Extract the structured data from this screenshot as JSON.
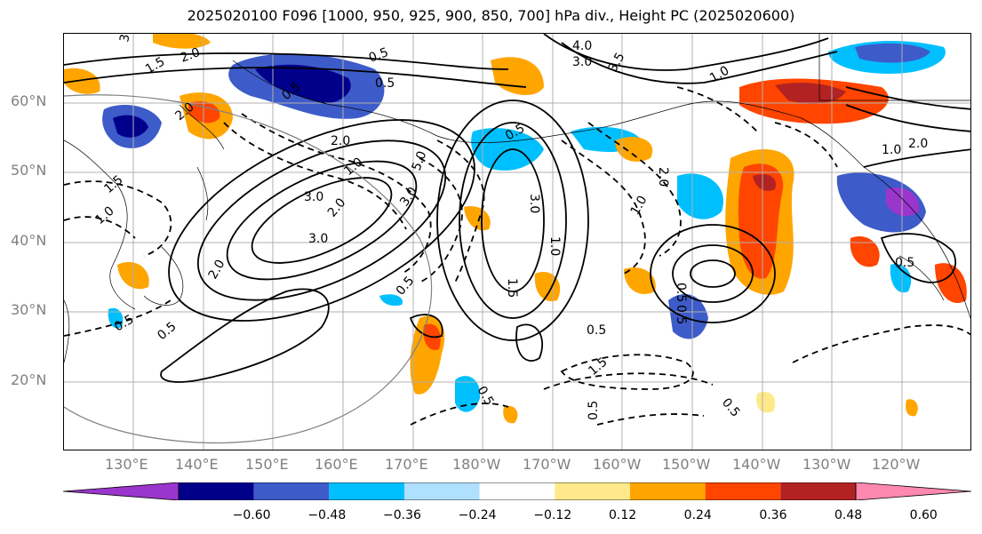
{
  "title": "2025020100 F096 [1000, 950, 925, 900, 850, 700] hPa div., Height PC (2025020600)",
  "lat_labels": [
    "60°N",
    "50°N",
    "40°N",
    "30°N",
    "20°N"
  ],
  "lon_labels": [
    "130°E",
    "140°E",
    "150°E",
    "160°E",
    "170°E",
    "180°W",
    "170°W",
    "160°W",
    "150°W",
    "140°W",
    "130°W",
    "120°W"
  ],
  "colorbar": {
    "colors": [
      "#9a36cc",
      "#00008b",
      "#3d5bc9",
      "#00bfff",
      "#b0e0ff",
      "#ffffff",
      "#ffe98a",
      "#ffa500",
      "#ff4500",
      "#b22222",
      "#ff88b0"
    ],
    "ticks": [
      "−0.60",
      "−0.48",
      "−0.36",
      "−0.24",
      "−0.12",
      "0.12",
      "0.24",
      "0.36",
      "0.48",
      "0.60"
    ]
  },
  "contour_labels": [
    "3.0",
    "2.0",
    "1.5",
    "0.5",
    "4.0",
    "3.0",
    "3.5",
    "1.0",
    "0.5",
    "2.0",
    "1.5",
    "2.0",
    "1.0",
    "3.0",
    "2.0",
    "5.0",
    "3.0",
    "3.0",
    "2.0",
    "0.5",
    "3.0",
    "1.0",
    "1.5",
    "0.5",
    "1.0",
    "2.0",
    "0.5",
    "1.0",
    "0.5",
    "0.5",
    "0.5",
    "1.5",
    "0.5",
    "0.5",
    "0.5",
    "0.5",
    "2.0",
    "1.0",
    "0.5",
    "0.5"
  ]
}
